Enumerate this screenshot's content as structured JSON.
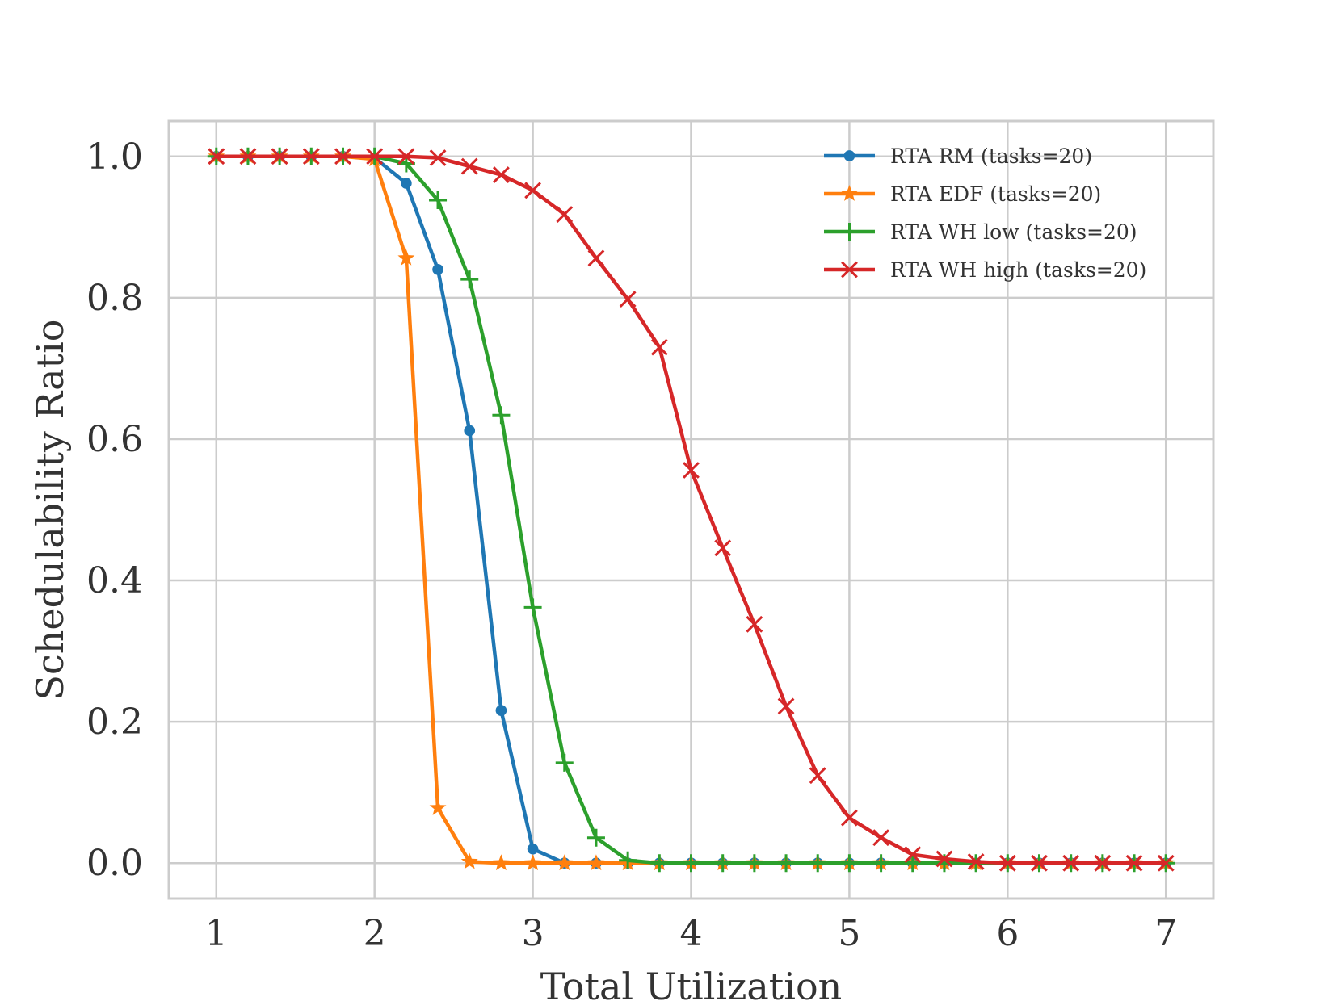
{
  "chart_data": {
    "type": "line",
    "title": "",
    "xlabel": "Total Utilization",
    "ylabel": "Schedulability Ratio",
    "xlim": [
      0.7,
      7.3
    ],
    "ylim": [
      -0.05,
      1.05
    ],
    "xticks": [
      1,
      2,
      3,
      4,
      5,
      6,
      7
    ],
    "xtick_labels": [
      "1",
      "2",
      "3",
      "4",
      "5",
      "6",
      "7"
    ],
    "yticks": [
      0.0,
      0.2,
      0.4,
      0.6,
      0.8,
      1.0
    ],
    "ytick_labels": [
      "0.0",
      "0.2",
      "0.4",
      "0.6",
      "0.8",
      "1.0"
    ],
    "grid": true,
    "legend_position": "upper-right",
    "x": [
      1.0,
      1.2,
      1.4,
      1.6,
      1.8,
      2.0,
      2.2,
      2.4,
      2.6,
      2.8,
      3.0,
      3.2,
      3.4,
      3.6,
      3.8,
      4.0,
      4.2,
      4.4,
      4.6,
      4.8,
      5.0,
      5.2,
      5.4,
      5.6,
      5.8,
      6.0,
      6.2,
      6.4,
      6.6,
      6.8,
      7.0
    ],
    "series": [
      {
        "name": "RTA RM (tasks=20)",
        "color": "#1f77b4",
        "marker": "circle",
        "values": [
          1.0,
          1.0,
          1.0,
          1.0,
          1.0,
          0.998,
          0.962,
          0.84,
          0.612,
          0.216,
          0.02,
          0.0,
          0.0,
          0.0,
          0.0,
          0.0,
          0.0,
          0.0,
          0.0,
          0.0,
          0.0,
          0.0,
          0.0,
          0.0,
          0.0,
          0.0,
          0.0,
          0.0,
          0.0,
          0.0,
          0.0
        ]
      },
      {
        "name": "RTA EDF (tasks=20)",
        "color": "#ff7f0e",
        "marker": "star",
        "values": [
          1.0,
          1.0,
          1.0,
          1.0,
          1.0,
          0.996,
          0.856,
          0.078,
          0.002,
          0.0,
          0.0,
          0.0,
          0.0,
          0.0,
          0.0,
          0.0,
          0.0,
          0.0,
          0.0,
          0.0,
          0.0,
          0.0,
          0.0,
          0.0,
          0.0,
          0.0,
          0.0,
          0.0,
          0.0,
          0.0,
          0.0
        ]
      },
      {
        "name": "RTA WH low (tasks=20)",
        "color": "#2ca02c",
        "marker": "plus",
        "values": [
          1.0,
          1.0,
          1.0,
          1.0,
          1.0,
          1.0,
          0.99,
          0.938,
          0.826,
          0.634,
          0.362,
          0.142,
          0.036,
          0.004,
          0.0,
          0.0,
          0.0,
          0.0,
          0.0,
          0.0,
          0.0,
          0.0,
          0.0,
          0.0,
          0.0,
          0.0,
          0.0,
          0.0,
          0.0,
          0.0,
          0.0
        ]
      },
      {
        "name": "RTA WH high (tasks=20)",
        "color": "#d62728",
        "marker": "x",
        "values": [
          1.0,
          1.0,
          1.0,
          1.0,
          1.0,
          1.0,
          1.0,
          0.998,
          0.986,
          0.974,
          0.952,
          0.918,
          0.856,
          0.798,
          0.73,
          0.556,
          0.446,
          0.338,
          0.222,
          0.124,
          0.064,
          0.036,
          0.012,
          0.006,
          0.002,
          0.0,
          0.0,
          0.0,
          0.0,
          0.0,
          0.0
        ]
      }
    ]
  }
}
